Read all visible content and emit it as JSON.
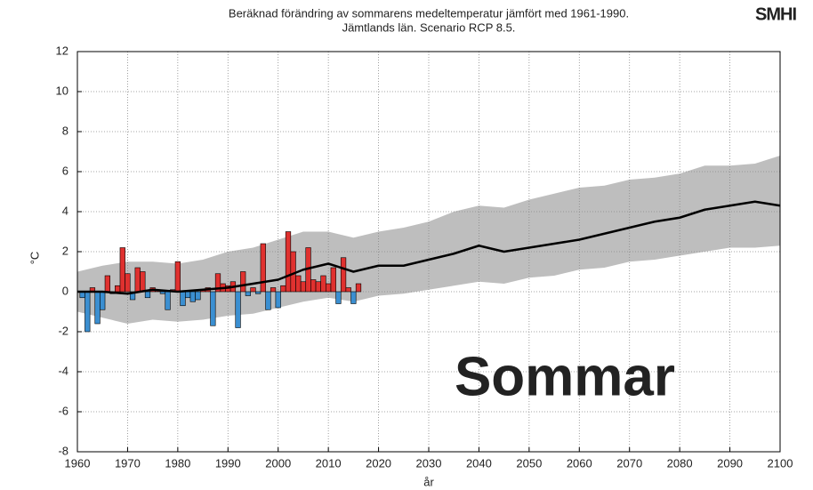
{
  "chart_data": {
    "type": "line",
    "title": "Beräknad förändring av sommarens medeltemperatur jämfört med 1961-1990.",
    "subtitle": "Jämtlands län. Scenario RCP 8.5.",
    "logo": "SMHI",
    "annotation": "Sommar",
    "annotation_color": "#f7941d",
    "xlabel": "år",
    "ylabel": "°C",
    "xlim": [
      1960,
      2100
    ],
    "ylim": [
      -8,
      12
    ],
    "xticks": [
      1960,
      1970,
      1980,
      1990,
      2000,
      2010,
      2020,
      2030,
      2040,
      2050,
      2060,
      2070,
      2080,
      2090,
      2100
    ],
    "yticks": [
      -8,
      -6,
      -4,
      -2,
      0,
      2,
      4,
      6,
      8,
      10,
      12
    ],
    "grid": true,
    "observed": {
      "x": [
        1961,
        1962,
        1963,
        1964,
        1965,
        1966,
        1967,
        1968,
        1969,
        1970,
        1971,
        1972,
        1973,
        1974,
        1975,
        1976,
        1977,
        1978,
        1979,
        1980,
        1981,
        1982,
        1983,
        1984,
        1985,
        1986,
        1987,
        1988,
        1989,
        1990,
        1991,
        1992,
        1993,
        1994,
        1995,
        1996,
        1997,
        1998,
        1999,
        2000,
        2001,
        2002,
        2003,
        2004,
        2005,
        2006,
        2007,
        2008,
        2009,
        2010,
        2011,
        2012,
        2013,
        2014,
        2015,
        2016
      ],
      "values": [
        -0.3,
        -2.0,
        0.2,
        -1.6,
        -0.9,
        0.8,
        -0.1,
        0.3,
        2.2,
        0.9,
        -0.4,
        1.2,
        1.0,
        -0.3,
        0.2,
        0.1,
        -0.1,
        -0.9,
        0.1,
        1.5,
        -0.7,
        -0.3,
        -0.5,
        -0.4,
        0.1,
        0.2,
        -1.7,
        0.9,
        0.4,
        0.3,
        0.5,
        -1.8,
        1.0,
        -0.2,
        0.2,
        -0.1,
        2.4,
        -0.9,
        0.2,
        -0.8,
        0.3,
        3.0,
        2.0,
        0.8,
        0.5,
        2.2,
        0.6,
        0.5,
        0.8,
        0.4,
        1.2,
        -0.6,
        1.7,
        0.2,
        -0.6,
        0.4
      ],
      "positive_color": "#e0312f",
      "negative_color": "#3b8fd1"
    },
    "model": {
      "x": [
        1960,
        1965,
        1970,
        1975,
        1980,
        1985,
        1990,
        1995,
        2000,
        2005,
        2010,
        2015,
        2020,
        2025,
        2030,
        2035,
        2040,
        2045,
        2050,
        2055,
        2060,
        2065,
        2070,
        2075,
        2080,
        2085,
        2090,
        2095,
        2100
      ],
      "mean": [
        0,
        0,
        -0.1,
        0.1,
        0,
        0.1,
        0.2,
        0.4,
        0.6,
        1.1,
        1.4,
        1.0,
        1.3,
        1.3,
        1.6,
        1.9,
        2.3,
        2.0,
        2.2,
        2.4,
        2.6,
        2.9,
        3.2,
        3.5,
        3.7,
        4.1,
        4.3,
        4.5,
        4.3
      ],
      "max": [
        1.0,
        1.3,
        1.5,
        1.5,
        1.4,
        1.6,
        2.0,
        2.2,
        2.6,
        3.0,
        3.0,
        2.7,
        3.0,
        3.2,
        3.5,
        4.0,
        4.3,
        4.2,
        4.6,
        4.9,
        5.2,
        5.3,
        5.6,
        5.7,
        5.9,
        6.3,
        6.3,
        6.4,
        6.8
      ],
      "min": [
        -1.0,
        -1.3,
        -1.6,
        -1.4,
        -1.5,
        -1.4,
        -1.2,
        -1.1,
        -0.8,
        -0.5,
        -0.3,
        -0.5,
        -0.2,
        -0.1,
        0.1,
        0.3,
        0.5,
        0.4,
        0.7,
        0.8,
        1.1,
        1.2,
        1.5,
        1.6,
        1.8,
        2.0,
        2.2,
        2.2,
        2.3
      ],
      "line_color": "#000000",
      "band_color": "#bebebe"
    }
  }
}
